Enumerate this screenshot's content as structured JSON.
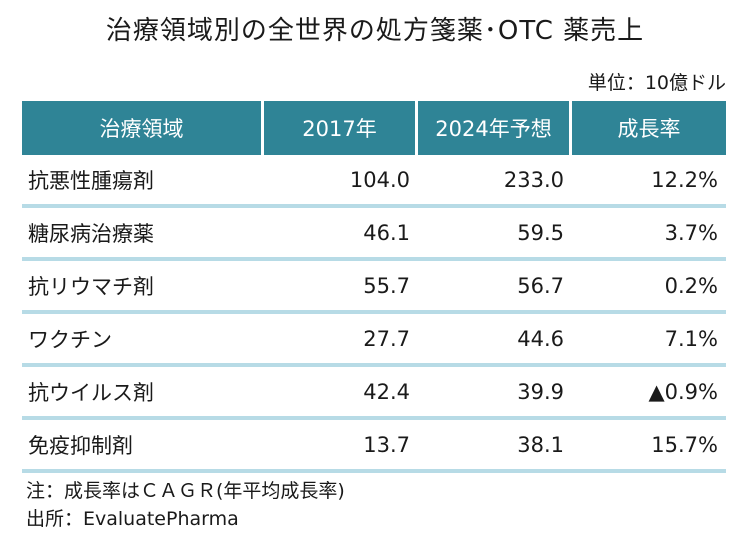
{
  "chart_data": {
    "type": "table",
    "title": "治療領域別の全世界の処方箋薬･OTC 薬売上",
    "unit": "単位：10億ドル",
    "columns": [
      "治療領域",
      "2017年",
      "2024年予想",
      "成長率"
    ],
    "rows": [
      {
        "area": "抗悪性腫瘍剤",
        "y2017": "104.0",
        "y2024": "233.0",
        "growth": "12.2%"
      },
      {
        "area": "糖尿病治療薬",
        "y2017": "46.1",
        "y2024": "59.5",
        "growth": "3.7%"
      },
      {
        "area": "抗リウマチ剤",
        "y2017": "55.7",
        "y2024": "56.7",
        "growth": "0.2%"
      },
      {
        "area": "ワクチン",
        "y2017": "27.7",
        "y2024": "44.6",
        "growth": "7.1%"
      },
      {
        "area": "抗ウイルス剤",
        "y2017": "42.4",
        "y2024": "39.9",
        "growth": "▲0.9%"
      },
      {
        "area": "免疫抑制剤",
        "y2017": "13.7",
        "y2024": "38.1",
        "growth": "15.7%"
      }
    ],
    "notes": [
      "注：成長率はＣＡＧＲ(年平均成長率)",
      "出所：EvaluatePharma"
    ]
  },
  "colors": {
    "header_bg": "#2f8496",
    "header_text": "#ffffff",
    "row_separator": "#b7dbe6"
  }
}
